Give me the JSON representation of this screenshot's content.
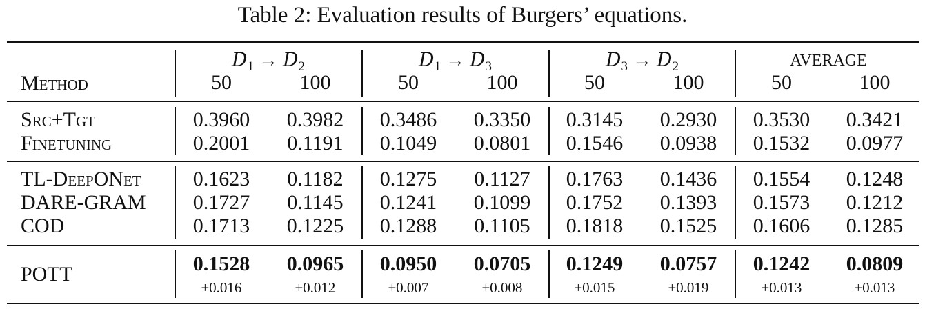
{
  "caption": "Table 2: Evaluation results of Burgers’ equations.",
  "header": {
    "method_label": "Method",
    "groups": [
      {
        "from": "D",
        "from_sub": "1",
        "arrow": "→",
        "to": "D",
        "to_sub": "2"
      },
      {
        "from": "D",
        "from_sub": "1",
        "arrow": "→",
        "to": "D",
        "to_sub": "3"
      },
      {
        "from": "D",
        "from_sub": "3",
        "arrow": "→",
        "to": "D",
        "to_sub": "2"
      },
      {
        "label": "AVERAGE"
      }
    ],
    "subcols": [
      "50",
      "100",
      "50",
      "100",
      "50",
      "100",
      "50",
      "100"
    ]
  },
  "rows": [
    {
      "method": "Src+Tgt",
      "values": [
        "0.3960",
        "0.3982",
        "0.3486",
        "0.3350",
        "0.3145",
        "0.2930",
        "0.3530",
        "0.3421"
      ]
    },
    {
      "method": "Finetuning",
      "values": [
        "0.2001",
        "0.1191",
        "0.1049",
        "0.0801",
        "0.1546",
        "0.0938",
        "0.1532",
        "0.0977"
      ]
    },
    {
      "method": "TL-DeepONet",
      "values": [
        "0.1623",
        "0.1182",
        "0.1275",
        "0.1127",
        "0.1763",
        "0.1436",
        "0.1554",
        "0.1248"
      ]
    },
    {
      "method": "DARE-GRAM",
      "values": [
        "0.1727",
        "0.1145",
        "0.1241",
        "0.1099",
        "0.1752",
        "0.1393",
        "0.1573",
        "0.1212"
      ]
    },
    {
      "method": "COD",
      "values": [
        "0.1713",
        "0.1225",
        "0.1288",
        "0.1105",
        "0.1818",
        "0.1525",
        "0.1606",
        "0.1285"
      ]
    },
    {
      "method": "POTT",
      "values": [
        "0.1528",
        "0.0965",
        "0.0950",
        "0.0705",
        "0.1249",
        "0.0757",
        "0.1242",
        "0.0809"
      ],
      "std": [
        "±0.016",
        "±0.012",
        "±0.007",
        "±0.008",
        "±0.015",
        "±0.019",
        "±0.013",
        "±0.013"
      ]
    }
  ]
}
